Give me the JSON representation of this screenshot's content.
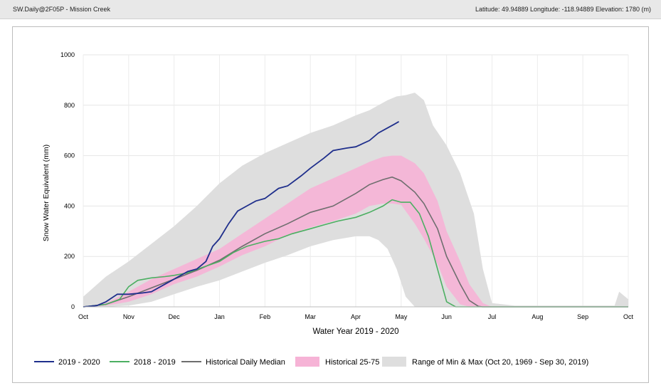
{
  "header": {
    "station": "SW.Daily@2F05P - Mission Creek",
    "location": "Latitude: 49.94889 Longitude: -118.94889 Elevation: 1780 (m)"
  },
  "colors": {
    "current": "#1f2f8c",
    "previous": "#4caf62",
    "median": "#6e6e6e",
    "band": "#f6b3d6",
    "range": "#dedede"
  },
  "chart_data": {
    "type": "area",
    "xlabel": "Water Year 2019 - 2020",
    "ylabel": "Snow Water Equivalent (mm)",
    "ylim": [
      0,
      1000
    ],
    "yticks": [
      0,
      200,
      400,
      600,
      800,
      1000
    ],
    "xticks": [
      "Oct",
      "Nov",
      "Dec",
      "Jan",
      "Feb",
      "Mar",
      "Apr",
      "May",
      "Jun",
      "Jul",
      "Aug",
      "Sep",
      "Oct"
    ],
    "x_unit": "months since Oct 1",
    "grid": true,
    "legend_position": "bottom",
    "series": [
      {
        "name": "2019 - 2020",
        "x": [
          0,
          0.3,
          0.5,
          0.75,
          1.0,
          1.3,
          1.5,
          1.7,
          2.0,
          2.3,
          2.5,
          2.7,
          2.85,
          3.0,
          3.2,
          3.4,
          3.6,
          3.8,
          4.0,
          4.3,
          4.5,
          4.8,
          5.0,
          5.3,
          5.5,
          5.8,
          6.0,
          6.3,
          6.5,
          6.7,
          6.85,
          6.95
        ],
        "y": [
          0,
          5,
          20,
          50,
          50,
          55,
          60,
          80,
          110,
          140,
          150,
          180,
          240,
          270,
          330,
          380,
          400,
          420,
          430,
          470,
          480,
          520,
          550,
          590,
          620,
          630,
          635,
          660,
          690,
          710,
          725,
          735
        ]
      },
      {
        "name": "2018 - 2019",
        "x": [
          0,
          0.5,
          0.8,
          1.0,
          1.2,
          1.5,
          1.8,
          2.0,
          2.3,
          2.6,
          3.0,
          3.3,
          3.6,
          4.0,
          4.3,
          4.6,
          5.0,
          5.3,
          5.6,
          6.0,
          6.3,
          6.6,
          6.8,
          7.0,
          7.2,
          7.4,
          7.6,
          7.8,
          8.0,
          8.2,
          8.5,
          9.0,
          10.0,
          11.0,
          12.0
        ],
        "y": [
          0,
          10,
          30,
          80,
          105,
          115,
          120,
          125,
          135,
          155,
          180,
          215,
          240,
          260,
          270,
          290,
          310,
          325,
          340,
          355,
          375,
          400,
          425,
          415,
          415,
          370,
          280,
          150,
          20,
          0,
          0,
          0,
          0,
          0,
          0
        ]
      },
      {
        "name": "Historical Daily Median",
        "x": [
          0,
          0.5,
          1.0,
          1.5,
          2.0,
          2.5,
          3.0,
          3.5,
          4.0,
          4.5,
          5.0,
          5.5,
          6.0,
          6.3,
          6.6,
          6.8,
          7.0,
          7.3,
          7.5,
          7.8,
          8.0,
          8.3,
          8.5,
          8.7,
          8.8,
          9.0,
          9.5,
          10.0,
          11.0,
          12.0
        ],
        "y": [
          0,
          10,
          40,
          75,
          110,
          145,
          185,
          240,
          290,
          330,
          375,
          400,
          450,
          485,
          505,
          515,
          500,
          455,
          410,
          310,
          200,
          90,
          25,
          2,
          0,
          0,
          0,
          0,
          0,
          0
        ]
      },
      {
        "name": "Historical 25-75",
        "type": "band",
        "x": [
          0,
          0.5,
          1.0,
          1.5,
          2.0,
          2.5,
          3.0,
          3.5,
          4.0,
          4.5,
          5.0,
          5.5,
          6.0,
          6.3,
          6.6,
          6.8,
          7.0,
          7.3,
          7.5,
          7.8,
          8.0,
          8.3,
          8.5,
          8.8,
          9.0,
          9.5,
          12.0
        ],
        "lower": [
          0,
          5,
          20,
          50,
          90,
          120,
          160,
          205,
          240,
          285,
          315,
          340,
          370,
          400,
          410,
          410,
          405,
          330,
          270,
          170,
          80,
          10,
          0,
          0,
          0,
          0,
          0
        ],
        "upper": [
          0,
          15,
          60,
          110,
          150,
          190,
          230,
          290,
          350,
          410,
          470,
          510,
          550,
          575,
          595,
          600,
          600,
          570,
          530,
          420,
          300,
          180,
          90,
          15,
          0,
          0,
          0
        ]
      },
      {
        "name": "Range of Min & Max (Oct 20, 1969 - Sep 30, 2019)",
        "type": "band",
        "x": [
          0,
          0.5,
          1.0,
          1.5,
          2.0,
          2.5,
          3.0,
          3.5,
          4.0,
          4.5,
          5.0,
          5.5,
          6.0,
          6.3,
          6.5,
          6.7,
          6.9,
          7.1,
          7.3,
          7.5,
          7.7,
          8.0,
          8.3,
          8.6,
          8.8,
          9.0,
          9.5,
          10.0,
          11.0,
          11.7,
          11.8,
          12.0
        ],
        "lower": [
          0,
          0,
          5,
          20,
          50,
          80,
          105,
          140,
          175,
          205,
          240,
          265,
          280,
          280,
          265,
          230,
          150,
          40,
          0,
          0,
          0,
          0,
          0,
          0,
          0,
          0,
          0,
          0,
          0,
          0,
          0,
          0
        ],
        "upper": [
          40,
          120,
          180,
          250,
          320,
          400,
          490,
          560,
          610,
          650,
          690,
          720,
          760,
          780,
          800,
          820,
          835,
          840,
          850,
          820,
          720,
          640,
          530,
          370,
          150,
          15,
          5,
          5,
          5,
          5,
          60,
          30
        ]
      }
    ]
  }
}
